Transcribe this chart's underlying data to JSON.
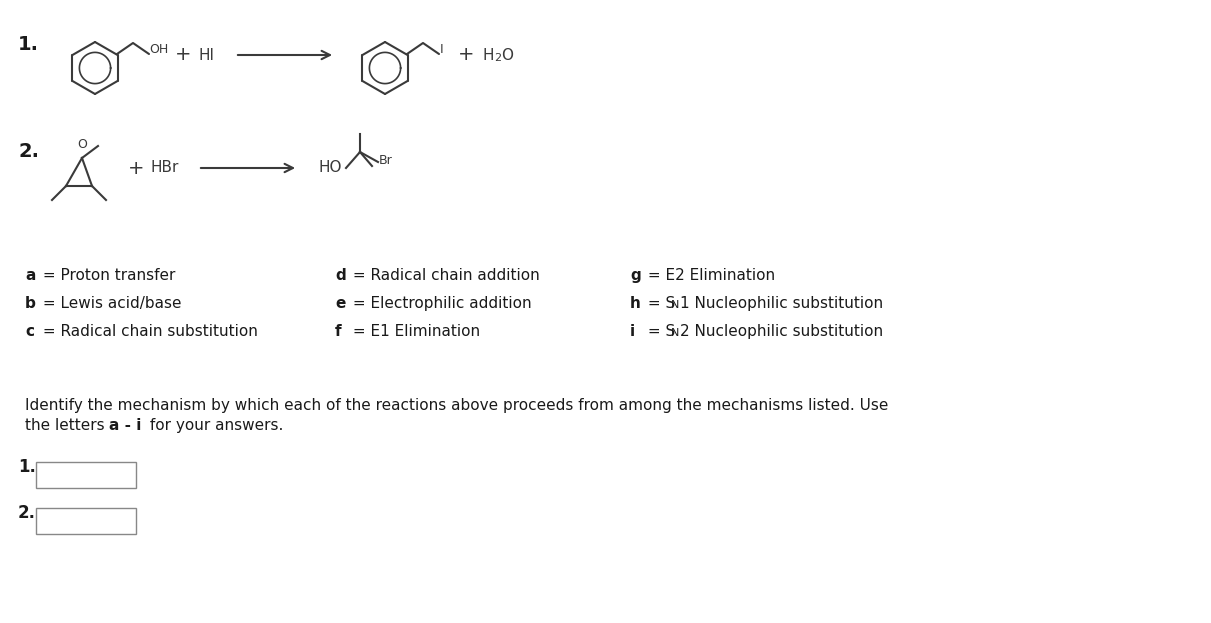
{
  "bg_color": "#ffffff",
  "fig_width": 12.11,
  "fig_height": 6.23,
  "col1_mechs": [
    {
      "letter": "a",
      "text": " = Proton transfer"
    },
    {
      "letter": "b",
      "text": " = Lewis acid/base"
    },
    {
      "letter": "c",
      "text": " = Radical chain substitution"
    }
  ],
  "col2_mechs": [
    {
      "letter": "d",
      "text": " = Radical chain addition"
    },
    {
      "letter": "e",
      "text": " = Electrophilic addition"
    },
    {
      "letter": "f",
      "text": " = E1 Elimination"
    }
  ],
  "col3_mechs": [
    {
      "letter": "g",
      "text": " = E2 Elimination"
    },
    {
      "letter": "h",
      "prefix": " = S",
      "sub": "N",
      "suffix": "1 Nucleophilic substitution"
    },
    {
      "letter": "i",
      "prefix": " = S",
      "sub": "N",
      "suffix": "2 Nucleophilic substitution"
    }
  ],
  "identify_line1": "Identify the mechanism by which each of the reactions above proceeds from among the mechanisms listed. Use",
  "identify_line2_pre": "the letters ",
  "identify_line2_bold": "a - i",
  "identify_line2_post": " for your answers.",
  "answer_labels": [
    "1.",
    "2."
  ],
  "text_color": "#1a1a1a",
  "line_color": "#3a3a3a"
}
